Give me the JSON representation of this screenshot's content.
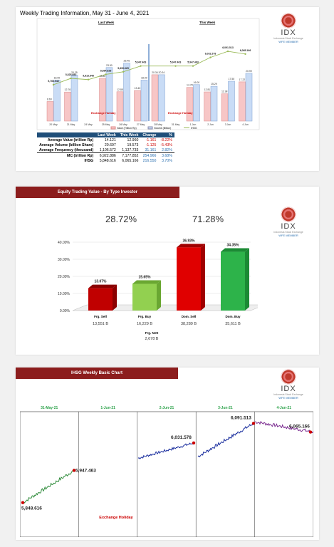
{
  "panel1": {
    "title": "Weekly Trading Information, May 31 - June 4, 2021",
    "last_week_label": "Last Week",
    "this_week_label": "This Week",
    "exchange_holiday": "Exchange Holiday",
    "legend": [
      "Value (Trillion Rp)",
      "Volume (Billion)",
      "IHSG"
    ],
    "stats_header": [
      "",
      "Last Week",
      "This Week",
      "Change",
      "%"
    ],
    "stats_rows": [
      [
        "Average Value (trillion Rp)",
        "14.121",
        "12.960",
        "-1.161",
        "-8.22%"
      ],
      [
        "Average Volume (billion Share)",
        "20.697",
        "19.573",
        "-1.125",
        "-5.43%"
      ],
      [
        "Average Frequency (thousand)",
        "1,106.572",
        "1,137.733",
        "31.161",
        "2.82%"
      ],
      [
        "MC (trillion Rp)",
        "6,922.886",
        "7,177.852",
        "254.966",
        "3.68%"
      ],
      [
        "IHSG",
        "5,848.616",
        "6,065.166",
        "216.550",
        "3.70%"
      ]
    ]
  },
  "panel2": {
    "title": "Equity Trading Value - By Type Investor",
    "foreign_pct": "28.72%",
    "domestic_pct": "71.28%",
    "categories": [
      "Frg. Sell",
      "Frg. Buy",
      "Dom. Sell",
      "Dom. Buy"
    ],
    "amounts": [
      "13,551 B",
      "16,229 B",
      "38,289 B",
      "35,611 B"
    ],
    "frg_nett_label": "Frg. Nett",
    "frg_nett_value": "2,678 B"
  },
  "panel3": {
    "title": "IHSG Weekly Basic Chart",
    "dates": [
      "31-May-21",
      "1-Jun-21",
      "2-Jun-21",
      "3-Jun-21",
      "4-Jun-21"
    ],
    "labels": [
      "5,848.616",
      "5,947.463",
      "6,031.578",
      "6,091.513",
      "6,065.166"
    ],
    "exchange_holiday": "Exchange Holiday"
  },
  "logo": {
    "name": "IDX",
    "sub": "Indonesia Stock Exchange",
    "wfe": "WFE MEMBER"
  },
  "chart_data": [
    {
      "type": "bar",
      "title": "Weekly Trading Information, May 31 - June 4, 2021",
      "categories": [
        "20 May",
        "21 May",
        "24 May",
        "25 May",
        "26 May",
        "27 May",
        "28 May",
        "31 May",
        "1 Jun",
        "2 Jun",
        "3 Jun",
        "4 Jun"
      ],
      "series": [
        {
          "name": "Value (Trillion Rp)",
          "values": [
            8.6,
            12.76,
            null,
            18.8,
            12.88,
            13.43,
            20.34,
            null,
            14.78,
            12.81,
            11.98,
            17.22
          ]
        },
        {
          "name": "Volume (Billion)",
          "values": [
            18.0,
            20.25,
            null,
            23.5,
            25.46,
            18.0,
            20.34,
            null,
            16.0,
            15.29,
            17.5,
            20.99
          ]
        },
        {
          "name": "IHSG",
          "values": [
            5763.042,
            5825.883,
            5813.848,
            5864.828,
            5890.625,
            5947.463,
            null,
            5947.463,
            5947.463,
            6031.578,
            6091.513,
            6065.166
          ]
        }
      ]
    },
    {
      "type": "bar",
      "title": "Equity Trading Value - By Type Investor",
      "categories": [
        "Frg. Sell",
        "Frg. Buy",
        "Dom. Sell",
        "Dom. Buy"
      ],
      "values": [
        13.07,
        15.65,
        36.93,
        34.35
      ],
      "ylim": [
        0,
        40
      ]
    },
    {
      "type": "line",
      "title": "IHSG Weekly Basic Chart",
      "x": [
        "31-May-21",
        "1-Jun-21",
        "2-Jun-21",
        "3-Jun-21",
        "4-Jun-21"
      ],
      "values": [
        5848.616,
        5947.463,
        6031.578,
        6091.513,
        6065.166
      ]
    }
  ],
  "colors": {
    "red": "#c0392b",
    "green": "#2ca24a",
    "blue": "#1a2e9e",
    "purple": "#7a2b8f",
    "darkred": "#8c1d1d"
  }
}
